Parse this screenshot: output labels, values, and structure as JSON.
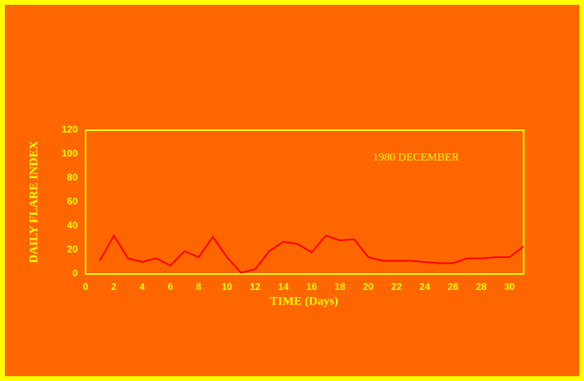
{
  "chart_data": {
    "type": "line",
    "annotation": "1980 DECEMBER",
    "x_label": "TIME (Days)",
    "y_label": "DAILY FLARE INDEX",
    "x": [
      1,
      2,
      3,
      4,
      5,
      6,
      7,
      8,
      9,
      10,
      11,
      12,
      13,
      14,
      15,
      16,
      17,
      18,
      19,
      20,
      21,
      22,
      23,
      24,
      25,
      26,
      27,
      28,
      29,
      30,
      31
    ],
    "series": [
      {
        "color": "#ff0000",
        "values": [
          11,
          32,
          13,
          10,
          13,
          7,
          19,
          14,
          31,
          14,
          1,
          4,
          19,
          27,
          25,
          18,
          32,
          28,
          29,
          14,
          11,
          11,
          11,
          10,
          9,
          9,
          13,
          13,
          14,
          14,
          23
        ]
      }
    ],
    "xlim": [
      0,
      31
    ],
    "xticks": [
      0,
      2,
      4,
      6,
      8,
      10,
      12,
      14,
      16,
      18,
      20,
      22,
      24,
      26,
      28,
      30
    ],
    "ylim": [
      0,
      120
    ],
    "yticks": [
      0,
      20,
      40,
      60,
      80,
      100,
      120
    ],
    "axis_color": "#ffff00",
    "background": "#ff6600"
  }
}
